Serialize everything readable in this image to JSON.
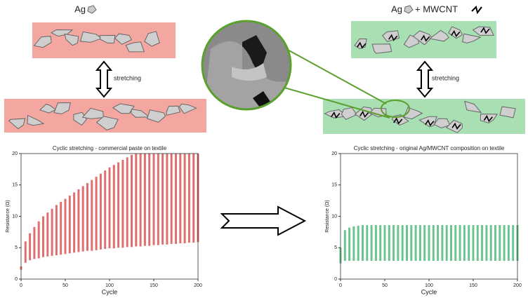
{
  "labels": {
    "left_material": "Ag",
    "right_material": "Ag",
    "right_additive": "+ MWCNT",
    "left_stretch": "stretching",
    "right_stretch": "stretching"
  },
  "chart_data": [
    {
      "type": "range",
      "title": "Cyclic stretching - commercial paste on textile",
      "xlabel": "Cycle",
      "ylabel": "Resistance (Ω)",
      "color": "#e07070",
      "x": [
        0,
        5,
        10,
        15,
        20,
        25,
        30,
        35,
        40,
        45,
        50,
        55,
        60,
        65,
        70,
        75,
        80,
        85,
        90,
        95,
        100,
        105,
        110,
        115,
        120,
        125,
        130,
        135,
        140,
        145,
        150,
        155,
        160,
        165,
        170,
        175,
        180,
        185,
        190,
        195,
        200
      ],
      "low": [
        1.5,
        2.6,
        3.0,
        3.2,
        3.3,
        3.5,
        3.6,
        3.7,
        3.8,
        3.9,
        4.0,
        4.1,
        4.2,
        4.3,
        4.4,
        4.5,
        4.5,
        4.6,
        4.7,
        4.8,
        4.9,
        4.9,
        5.0,
        5.0,
        5.1,
        5.1,
        5.2,
        5.2,
        5.3,
        5.3,
        5.4,
        5.4,
        5.5,
        5.5,
        5.6,
        5.6,
        5.7,
        5.7,
        5.8,
        5.8,
        5.9
      ],
      "high": [
        2.0,
        6.0,
        7.3,
        8.3,
        9.2,
        10.0,
        10.6,
        11.2,
        11.8,
        12.3,
        12.8,
        13.3,
        13.8,
        14.3,
        14.8,
        15.3,
        15.8,
        16.3,
        16.8,
        17.3,
        17.8,
        18.2,
        18.6,
        19.0,
        19.4,
        19.8,
        20,
        20,
        20,
        20,
        20,
        20,
        20,
        20,
        20,
        20,
        20,
        20,
        20,
        20,
        20
      ],
      "xlim": [
        0,
        200
      ],
      "ylim": [
        0,
        20
      ],
      "xticks": [
        0,
        50,
        100,
        150,
        200
      ],
      "yticks": [
        0,
        5,
        10,
        15,
        20
      ]
    },
    {
      "type": "range",
      "title": "Cyclic stretching - original Ag/MWCNT composition on textile",
      "xlabel": "Cycle",
      "ylabel": "Resistance (Ω)",
      "color": "#6cc48e",
      "x": [
        0,
        5,
        10,
        15,
        20,
        25,
        30,
        35,
        40,
        45,
        50,
        55,
        60,
        65,
        70,
        75,
        80,
        85,
        90,
        95,
        100,
        105,
        110,
        115,
        120,
        125,
        130,
        135,
        140,
        145,
        150,
        155,
        160,
        165,
        170,
        175,
        180,
        185,
        190,
        195,
        200
      ],
      "low": [
        2.5,
        2.9,
        2.9,
        2.9,
        2.9,
        2.9,
        2.9,
        2.9,
        2.9,
        2.9,
        2.9,
        2.9,
        2.9,
        2.9,
        2.9,
        2.9,
        2.9,
        2.9,
        2.9,
        2.9,
        2.9,
        2.9,
        2.9,
        2.9,
        2.9,
        2.9,
        2.9,
        2.9,
        2.9,
        2.9,
        2.9,
        2.9,
        2.9,
        2.9,
        2.9,
        2.9,
        2.9,
        2.9,
        2.9,
        2.9,
        2.9
      ],
      "high": [
        5.0,
        7.8,
        8.2,
        8.4,
        8.5,
        8.6,
        8.6,
        8.6,
        8.6,
        8.6,
        8.6,
        8.6,
        8.6,
        8.6,
        8.6,
        8.6,
        8.6,
        8.6,
        8.6,
        8.6,
        8.6,
        8.6,
        8.6,
        8.6,
        8.6,
        8.6,
        8.6,
        8.6,
        8.6,
        8.6,
        8.6,
        8.6,
        8.6,
        8.6,
        8.6,
        8.6,
        8.6,
        8.6,
        8.6,
        8.6,
        8.6
      ],
      "xlim": [
        0,
        200
      ],
      "ylim": [
        0,
        20
      ],
      "xticks": [
        0,
        50,
        100,
        150,
        200
      ],
      "yticks": [
        0,
        5,
        10,
        15,
        20
      ]
    }
  ]
}
